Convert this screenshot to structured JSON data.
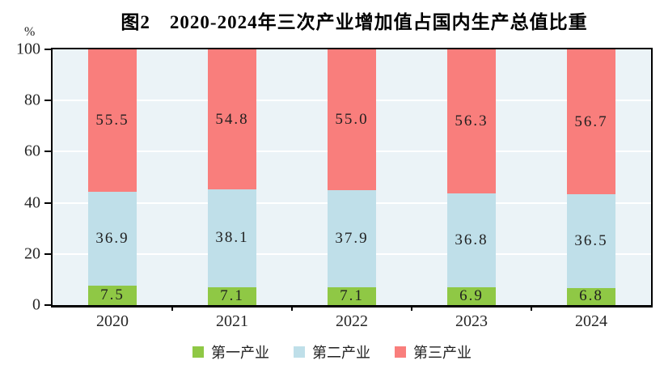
{
  "title": "图2　2020-2024年三次产业增加值占国内生产总值比重",
  "y_axis": {
    "unit_label": "%",
    "ticks": [
      0,
      20,
      40,
      60,
      80,
      100
    ]
  },
  "chart_data": {
    "type": "bar",
    "stacked": true,
    "title": "图2　2020-2024年三次产业增加值占国内生产总值比重",
    "xlabel": "",
    "ylabel": "%",
    "ylim": [
      0,
      100
    ],
    "grid": true,
    "gridline_color": "#FFFFFF",
    "plot_background": "#EBF3F7",
    "legend_position": "bottom",
    "categories": [
      "2020",
      "2021",
      "2022",
      "2023",
      "2024"
    ],
    "series": [
      {
        "name": "第一产业",
        "color": "#8FC845",
        "values": [
          7.5,
          7.1,
          7.1,
          6.9,
          6.8
        ]
      },
      {
        "name": "第二产业",
        "color": "#BFDFE9",
        "values": [
          36.9,
          38.1,
          37.9,
          36.8,
          36.5
        ]
      },
      {
        "name": "第三产业",
        "color": "#F97E7C",
        "values": [
          55.5,
          54.8,
          55.0,
          56.3,
          56.7
        ]
      }
    ]
  }
}
